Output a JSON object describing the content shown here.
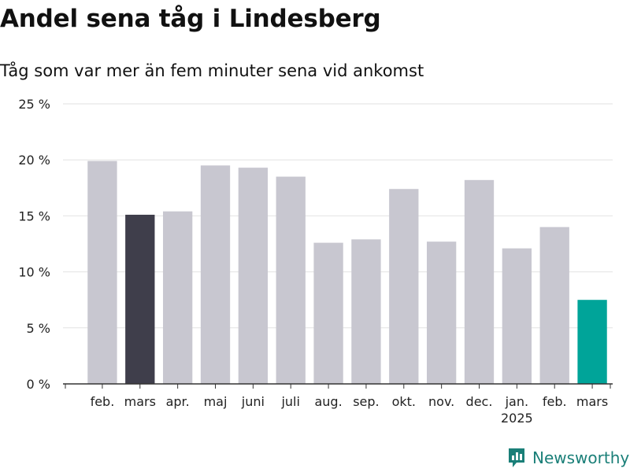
{
  "header": {
    "title": "Andel sena tåg i Lindesberg",
    "subtitle": "Tåg som var mer än fem minuter sena vid ankomst"
  },
  "chart_data": {
    "type": "bar",
    "categories": [
      "feb.",
      "mars",
      "apr.",
      "maj",
      "juni",
      "juli",
      "aug.",
      "sep.",
      "okt.",
      "nov.",
      "dec.",
      "jan.",
      "feb.",
      "mars"
    ],
    "year_label": "2025",
    "year_label_category_index": 11,
    "values": [
      19.9,
      15.1,
      15.4,
      19.5,
      19.3,
      18.5,
      12.6,
      12.9,
      17.4,
      12.7,
      18.2,
      12.1,
      14.0,
      7.5
    ],
    "ylim": [
      0,
      25
    ],
    "yticks": [
      0,
      5,
      10,
      15,
      20,
      25
    ],
    "ytick_labels": [
      "0 %",
      "5 %",
      "10 %",
      "15 %",
      "20 %",
      "25 %"
    ],
    "grid": true,
    "colors": {
      "default": "#c8c7d0",
      "highlight_prev_year": "#3f3e4b",
      "highlight_latest": "#00a499"
    },
    "highlight_prev_year_index": 1,
    "highlight_latest_index": 13
  },
  "brand": {
    "name": "Newsworthy",
    "icon": "newsworthy-logo-icon",
    "color": "#1a7f78"
  }
}
